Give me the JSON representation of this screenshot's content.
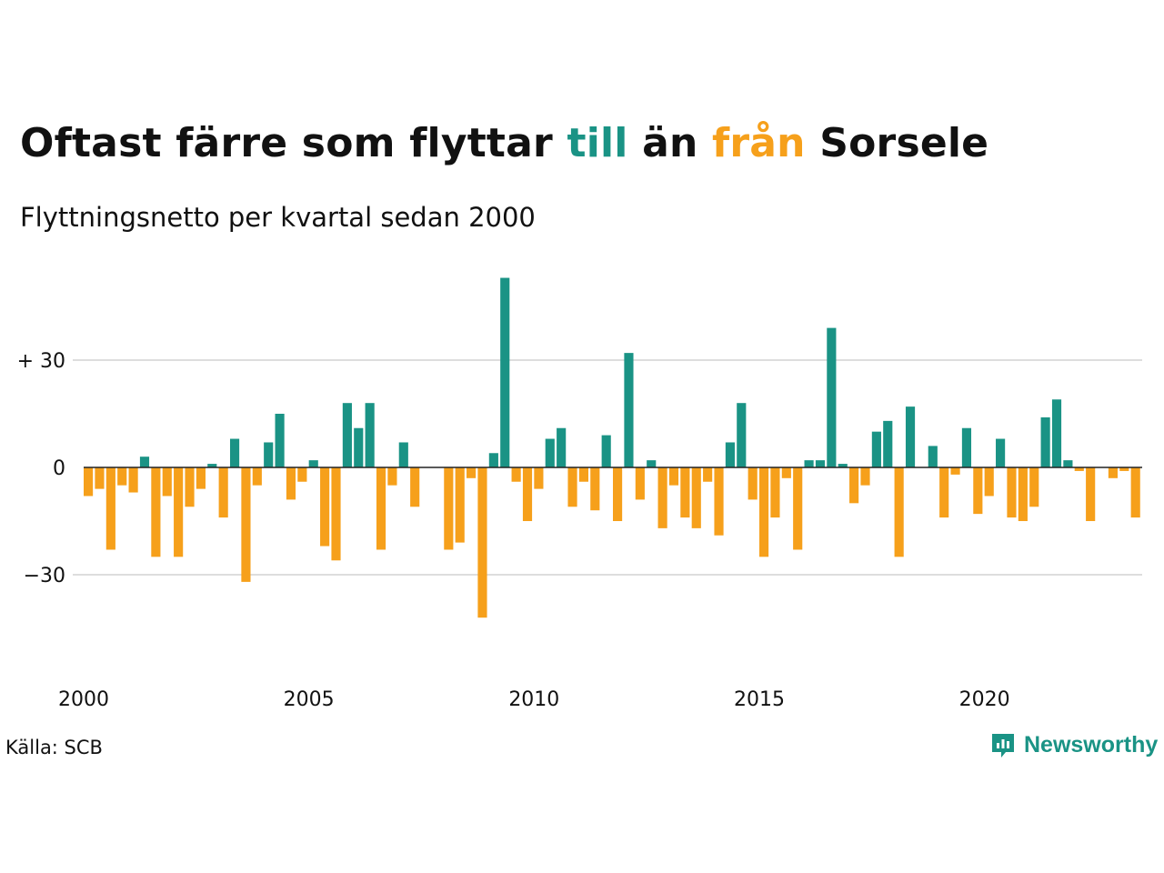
{
  "title": {
    "part1": "Oftast färre som flyttar ",
    "highlight_to": "till",
    "part2": " än ",
    "highlight_from": "från",
    "part3": " Sorsele"
  },
  "subtitle": "Flyttningsnetto per kvartal sedan 2000",
  "source": "Källa: SCB",
  "brand": {
    "name": "Newsworthy",
    "icon": "newsworthy-logo-icon"
  },
  "colors": {
    "positive": "#1a9385",
    "negative": "#f6a01b",
    "grid": "#dddddd",
    "text": "#111111"
  },
  "chart_data": {
    "type": "bar",
    "x_start": 2000,
    "x_end_exclusive": 2023.5,
    "periods_per_year": 4,
    "ylim": [
      -50,
      60
    ],
    "yticks": [
      {
        "value": 30,
        "label": "+ 30"
      },
      {
        "value": 0,
        "label": "0"
      },
      {
        "value": -30,
        "label": "−30"
      }
    ],
    "xticks": [
      "2000",
      "2005",
      "2010",
      "2015",
      "2020"
    ],
    "grid": true,
    "values": [
      -8,
      -6,
      -23,
      -5,
      -7,
      3,
      -25,
      -8,
      -25,
      -11,
      -6,
      1,
      -14,
      8,
      -32,
      -5,
      7,
      15,
      -9,
      -4,
      2,
      -22,
      -26,
      18,
      11,
      18,
      -23,
      -5,
      7,
      -11,
      0,
      0,
      -23,
      -21,
      -3,
      -42,
      4,
      53,
      -4,
      -15,
      -6,
      8,
      11,
      -11,
      -4,
      -12,
      9,
      -15,
      32,
      -9,
      2,
      -17,
      -5,
      -14,
      -17,
      -4,
      -19,
      7,
      18,
      -9,
      -25,
      -14,
      -3,
      -23,
      2,
      2,
      39,
      1,
      -10,
      -5,
      10,
      13,
      -25,
      17,
      0,
      6,
      -14,
      -2,
      11,
      -13,
      -8,
      8,
      -14,
      -15,
      -11,
      14,
      19,
      2,
      -1,
      -15,
      0,
      -3,
      -1,
      -14
    ]
  }
}
